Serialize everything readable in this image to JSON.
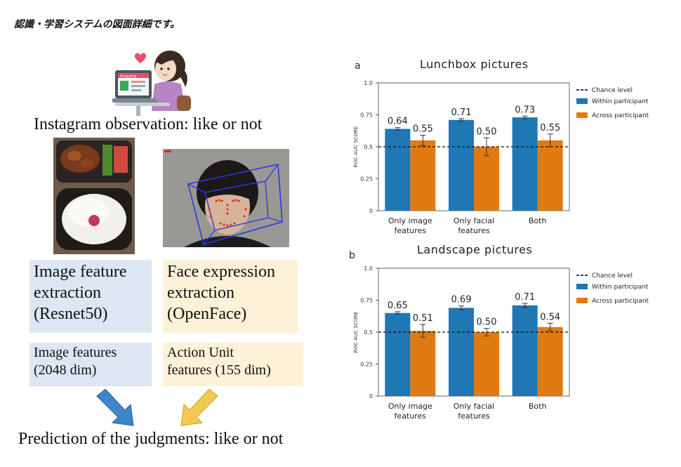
{
  "caption": "認識・学習システムの図面詳細です。",
  "left": {
    "top_label": "Instagram observation: like or not",
    "image_box_label": "Image feature extraction (Resnet50)",
    "image_box_lines": [
      "Image feature",
      "extraction",
      "(Resnet50)"
    ],
    "face_box_lines": [
      "Face expression",
      "extraction",
      "(OpenFace)"
    ],
    "image_feat_lines": [
      "Image features",
      "(2048 dim)"
    ],
    "face_feat_lines": [
      "Action Unit",
      "features (155 dim)"
    ],
    "bottom_label": "Prediction of the judgments: like or not",
    "laptop_screen_text": "Shopping",
    "colors": {
      "blue_box": "#dde7f3",
      "yellow_box": "#fdf1d8",
      "blue_arrow": "#3f86c9",
      "yellow_arrow": "#f2c94c"
    }
  },
  "chart_data": [
    {
      "panel": "a",
      "type": "bar",
      "title": "Lunchbox pictures",
      "ylabel": "ROC AUC SCORE",
      "ylim": [
        0,
        1.0
      ],
      "yticks": [
        "0",
        "0.25",
        "0.5",
        "0.75",
        "1.0"
      ],
      "categories": [
        "Only image features",
        "Only facial features",
        "Both"
      ],
      "category_lines": [
        [
          "Only image",
          "features"
        ],
        [
          "Only facial",
          "features"
        ],
        [
          "Both"
        ]
      ],
      "series": [
        {
          "name": "Within participant",
          "color": "#1f77b4",
          "values": [
            0.64,
            0.71,
            0.73
          ],
          "errors": [
            0.01,
            0.01,
            0.01
          ],
          "labels": [
            "0.64",
            "0.71",
            "0.73"
          ]
        },
        {
          "name": "Across participant",
          "color": "#e07b12",
          "values": [
            0.55,
            0.5,
            0.55
          ],
          "errors": [
            0.04,
            0.07,
            0.05
          ],
          "labels": [
            "0.55",
            "0.50",
            "0.55"
          ]
        }
      ],
      "reference_line": {
        "name": "Chance level",
        "value": 0.5
      },
      "legend_position": "right"
    },
    {
      "panel": "b",
      "type": "bar",
      "title": "Landscape pictures",
      "ylabel": "ROC AUC SCORE",
      "ylim": [
        0,
        1.0
      ],
      "yticks": [
        "0",
        "0.25",
        "0.5",
        "0.75",
        "1.0"
      ],
      "categories": [
        "Only image features",
        "Only facial features",
        "Both"
      ],
      "category_lines": [
        [
          "Only image",
          "features"
        ],
        [
          "Only facial",
          "features"
        ],
        [
          "Both"
        ]
      ],
      "series": [
        {
          "name": "Within participant",
          "color": "#1f77b4",
          "values": [
            0.65,
            0.69,
            0.71
          ],
          "errors": [
            0.01,
            0.015,
            0.015
          ],
          "labels": [
            "0.65",
            "0.69",
            "0.71"
          ]
        },
        {
          "name": "Across participant",
          "color": "#e07b12",
          "values": [
            0.51,
            0.5,
            0.54
          ],
          "errors": [
            0.05,
            0.03,
            0.03
          ],
          "labels": [
            "0.51",
            "0.50",
            "0.54"
          ]
        }
      ],
      "reference_line": {
        "name": "Chance level",
        "value": 0.5
      },
      "legend_position": "right"
    }
  ]
}
